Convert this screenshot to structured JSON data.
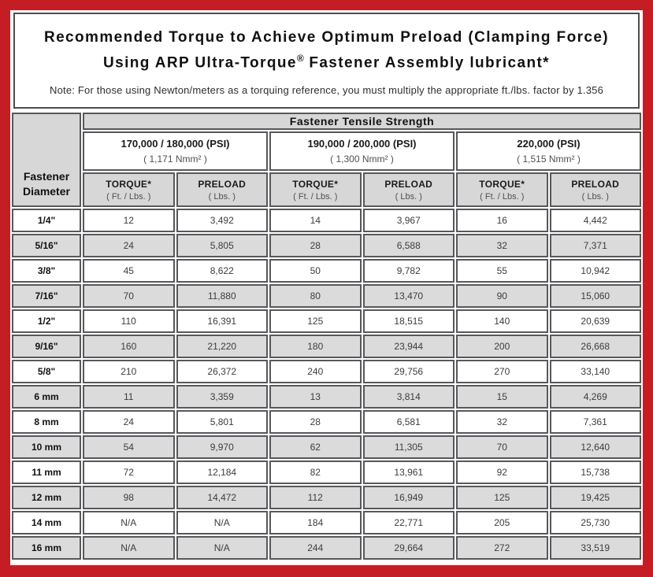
{
  "header": {
    "title_line1": "Recommended Torque to Achieve Optimum Preload (Clamping Force)",
    "title_line2_prefix": "Using ARP Ultra-Torque",
    "title_line2_reg": "®",
    "title_line2_suffix": " Fastener Assembly lubricant*",
    "note": "Note: For those using Newton/meters as a torquing reference, you must multiply the appropriate ft./lbs. factor by 1.356"
  },
  "colors": {
    "frame_red": "#c41e24",
    "cell_border": "#57585b",
    "header_gray": "#d7d7d7",
    "row_gray": "#dbdbdb"
  },
  "table": {
    "tensile_header": "Fastener Tensile Strength",
    "diameter_header_line1": "Fastener",
    "diameter_header_line2": "Diameter",
    "groups": [
      {
        "psi": "170,000 / 180,000 (PSI)",
        "nmm": "( 1,171 Nmm² )"
      },
      {
        "psi": "190,000 / 200,000 (PSI)",
        "nmm": "( 1,300 Nmm² )"
      },
      {
        "psi": "220,000 (PSI)",
        "nmm": "( 1,515 Nmm² )"
      }
    ],
    "col_headers": {
      "torque_label": "TORQUE*",
      "torque_unit": "( Ft. / Lbs. )",
      "preload_label": "PRELOAD",
      "preload_unit": "( Lbs. )"
    }
  },
  "chart_data": {
    "type": "table",
    "title": "Recommended Torque to Achieve Optimum Preload (Clamping Force) Using ARP Ultra-Torque® Fastener Assembly lubricant*",
    "note": "Note: For those using Newton/meters as a torquing reference, you must multiply the appropriate ft./lbs. factor by 1.356",
    "column_groups": [
      "170,000 / 180,000 (PSI) ( 1,171 Nmm² )",
      "190,000 / 200,000 (PSI) ( 1,300 Nmm² )",
      "220,000 (PSI) ( 1,515 Nmm² )"
    ],
    "columns": [
      "Fastener Diameter",
      "TORQUE* ( Ft. / Lbs. )",
      "PRELOAD ( Lbs. )",
      "TORQUE* ( Ft. / Lbs. )",
      "PRELOAD ( Lbs. )",
      "TORQUE* ( Ft. / Lbs. )",
      "PRELOAD ( Lbs. )"
    ],
    "rows": [
      [
        "1/4\"",
        "12",
        "3,492",
        "14",
        "3,967",
        "16",
        "4,442"
      ],
      [
        "5/16\"",
        "24",
        "5,805",
        "28",
        "6,588",
        "32",
        "7,371"
      ],
      [
        "3/8\"",
        "45",
        "8,622",
        "50",
        "9,782",
        "55",
        "10,942"
      ],
      [
        "7/16\"",
        "70",
        "11,880",
        "80",
        "13,470",
        "90",
        "15,060"
      ],
      [
        "1/2\"",
        "110",
        "16,391",
        "125",
        "18,515",
        "140",
        "20,639"
      ],
      [
        "9/16\"",
        "160",
        "21,220",
        "180",
        "23,944",
        "200",
        "26,668"
      ],
      [
        "5/8\"",
        "210",
        "26,372",
        "240",
        "29,756",
        "270",
        "33,140"
      ],
      [
        "6 mm",
        "11",
        "3,359",
        "13",
        "3,814",
        "15",
        "4,269"
      ],
      [
        "8 mm",
        "24",
        "5,801",
        "28",
        "6,581",
        "32",
        "7,361"
      ],
      [
        "10 mm",
        "54",
        "9,970",
        "62",
        "11,305",
        "70",
        "12,640"
      ],
      [
        "11 mm",
        "72",
        "12,184",
        "82",
        "13,961",
        "92",
        "15,738"
      ],
      [
        "12 mm",
        "98",
        "14,472",
        "112",
        "16,949",
        "125",
        "19,425"
      ],
      [
        "14 mm",
        "N/A",
        "N/A",
        "184",
        "22,771",
        "205",
        "25,730"
      ],
      [
        "16 mm",
        "N/A",
        "N/A",
        "244",
        "29,664",
        "272",
        "33,519"
      ]
    ]
  }
}
